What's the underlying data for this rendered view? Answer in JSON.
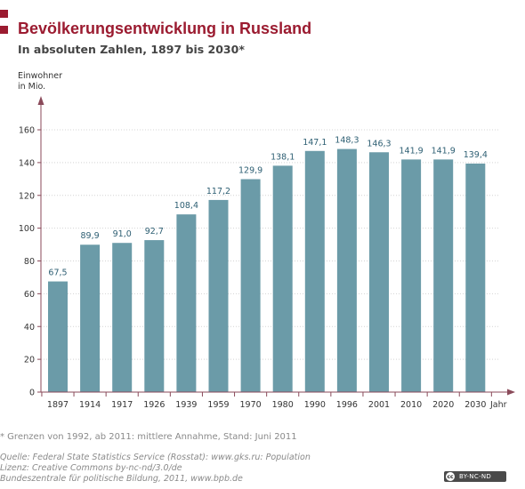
{
  "header": {
    "title": "Bevölkerungsentwicklung in Russland",
    "subtitle": "In absoluten Zahlen, 1897 bis 2030*",
    "accent_color": "#9b1b30"
  },
  "chart_data": {
    "type": "bar",
    "title": "Bevölkerungsentwicklung in Russland",
    "subtitle": "In absoluten Zahlen, 1897 bis 2030*",
    "ylabel_lines": [
      "Einwohner",
      "in Mio."
    ],
    "xlabel": "Jahr",
    "categories": [
      "1897",
      "1914",
      "1917",
      "1926",
      "1939",
      "1959",
      "1970",
      "1980",
      "1990",
      "1996",
      "2001",
      "2010",
      "2020",
      "2030"
    ],
    "values": [
      67.5,
      89.9,
      91.0,
      92.7,
      108.4,
      117.2,
      129.9,
      138.1,
      147.1,
      148.3,
      146.3,
      141.9,
      141.9,
      139.4
    ],
    "value_labels": [
      "67,5",
      "89,9",
      "91,0",
      "92,7",
      "108,4",
      "117,2",
      "129,9",
      "138,1",
      "147,1",
      "148,3",
      "146,3",
      "141,9",
      "141,9",
      "139,4"
    ],
    "yticks": [
      0,
      20,
      40,
      60,
      80,
      100,
      120,
      140,
      160
    ],
    "ylim": [
      0,
      160
    ],
    "grid": true,
    "bar_color": "#6b9ba8",
    "axis_color": "#8a4a5a",
    "label_color": "#2e5f73"
  },
  "footnote": "* Grenzen von 1992, ab 2011: mittlere Annahme, Stand: Juni 2011",
  "source_lines": [
    "Quelle: Federal State Statistics Service (Rosstat): www.gks.ru: Population",
    "Lizenz: Creative Commons by-nc-nd/3.0/de",
    "Bundeszentrale für politische Bildung, 2011, www.bpb.de"
  ],
  "license_badge": {
    "cc": "cc",
    "text": "BY-NC-ND"
  }
}
